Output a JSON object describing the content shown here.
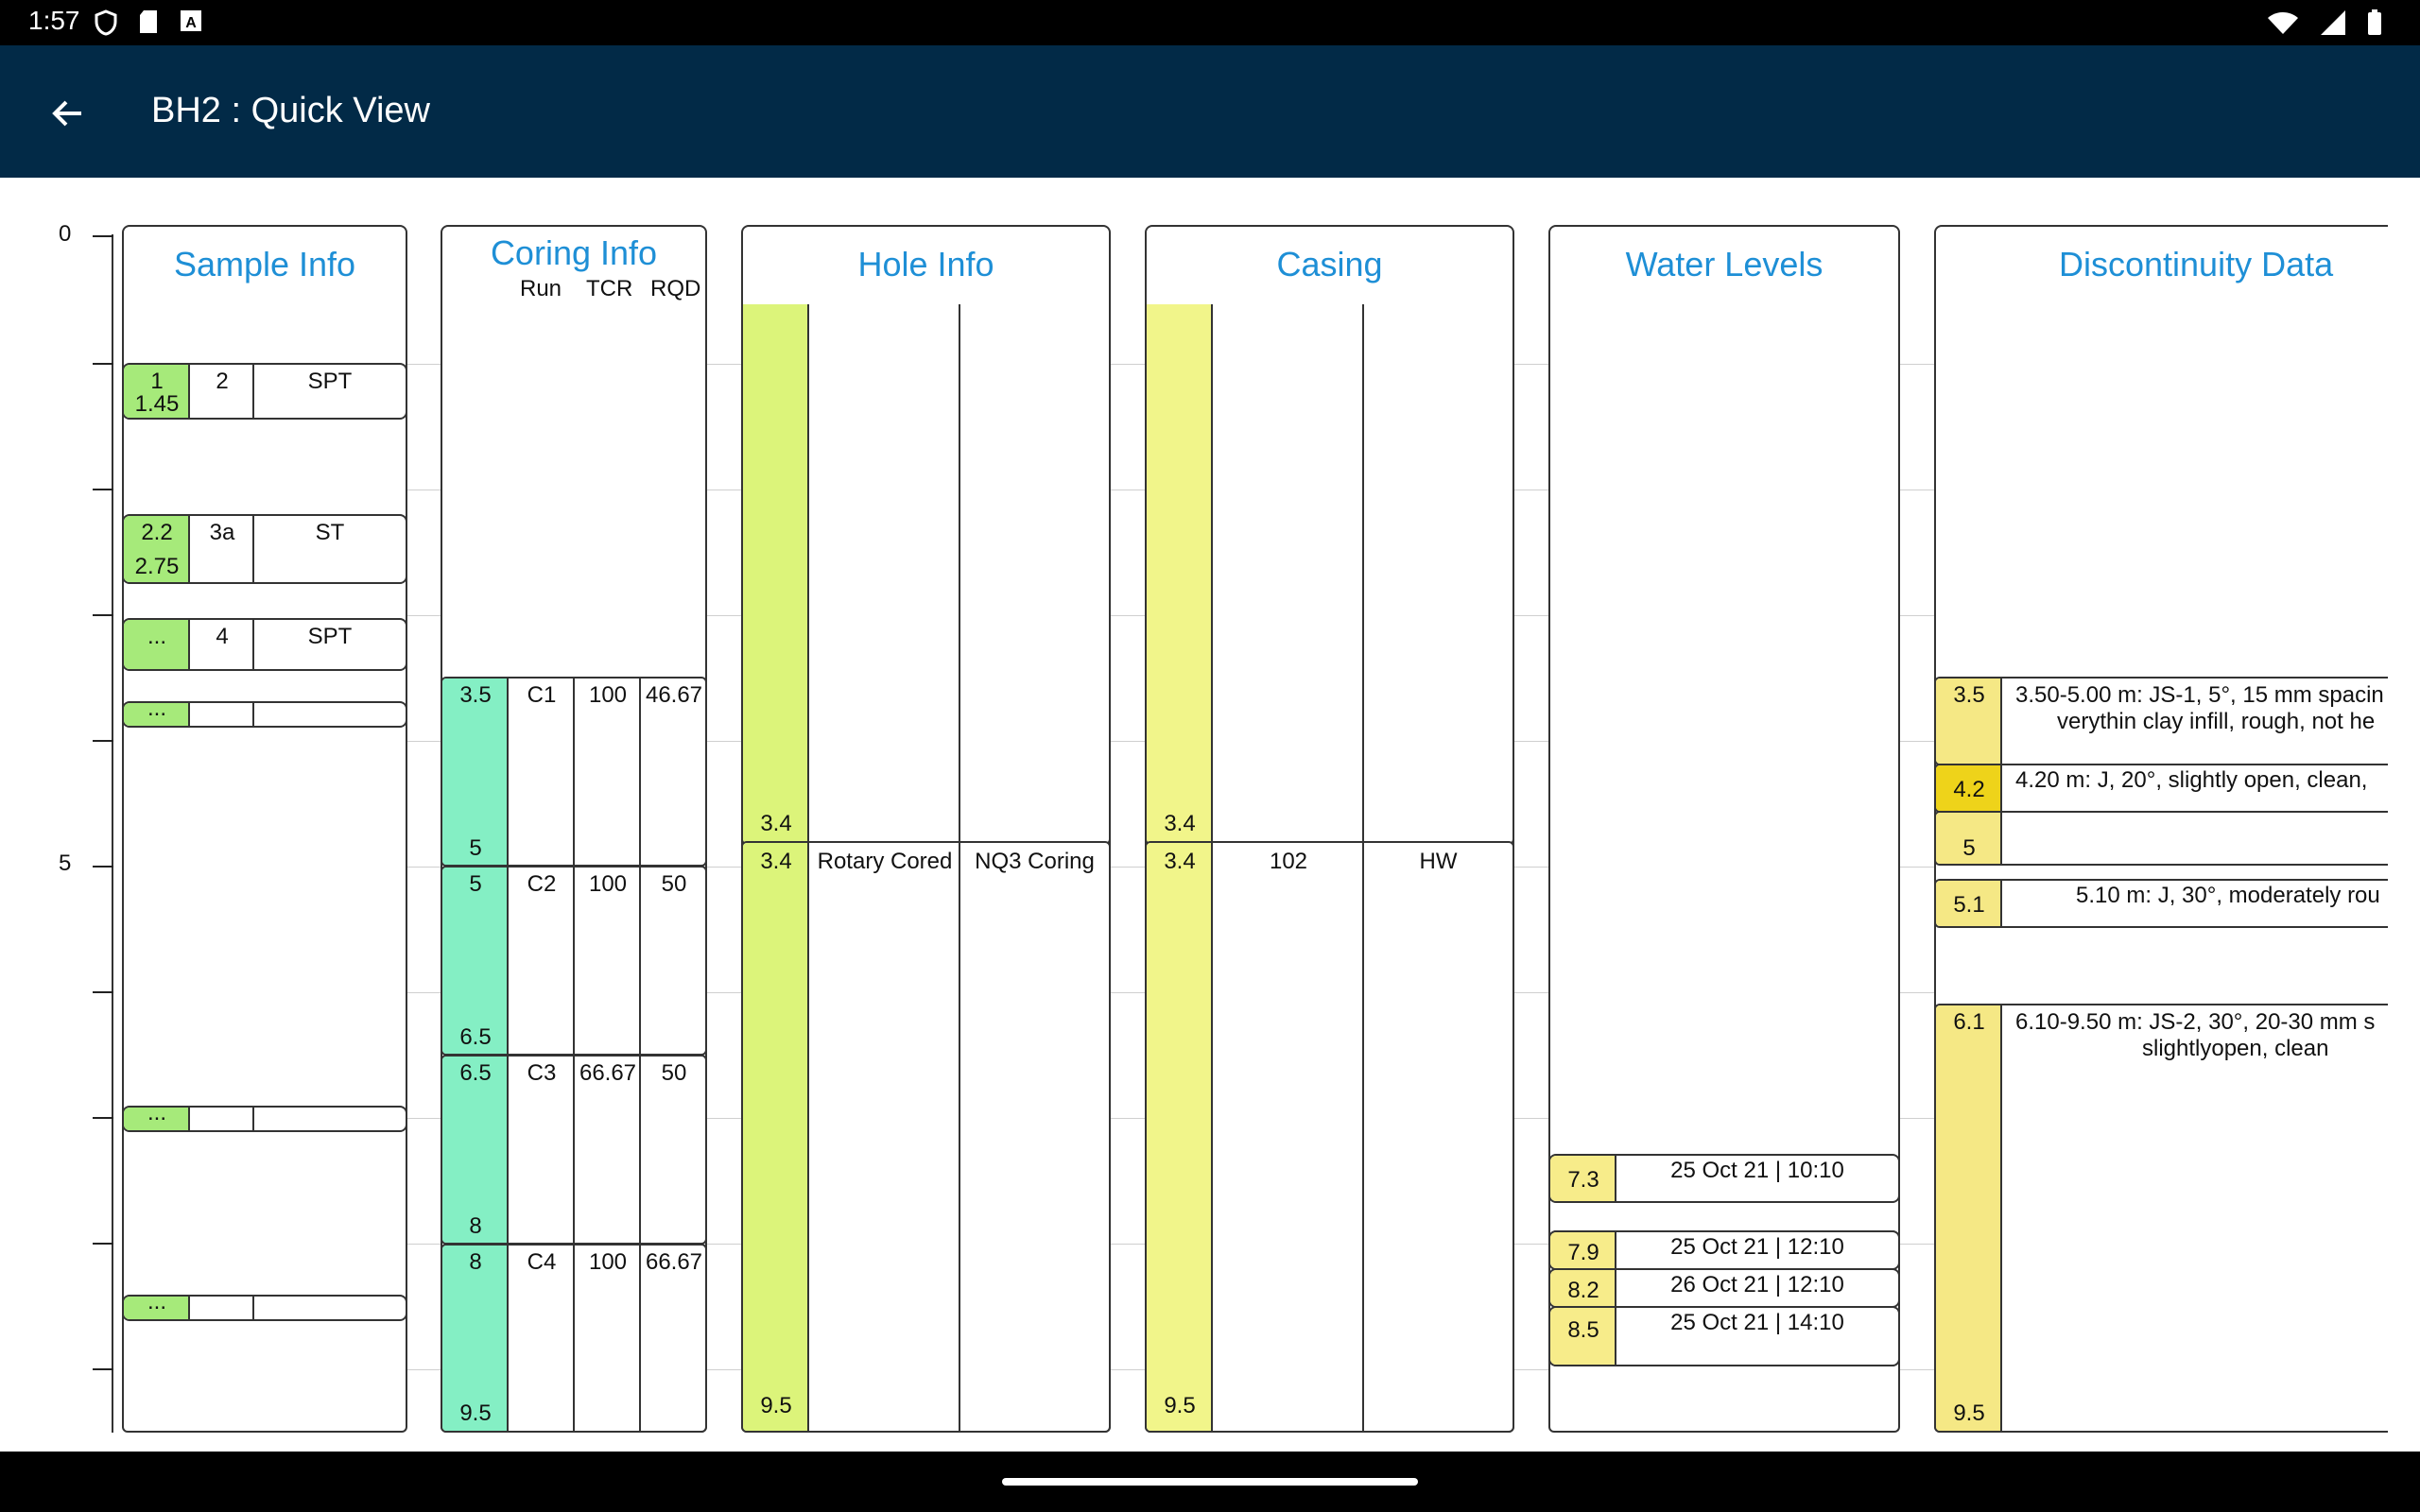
{
  "status_bar": {
    "time": "1:57",
    "left_icons": [
      "shield-icon",
      "sd-card-icon",
      "font-icon"
    ],
    "right_icons": [
      "wifi-icon",
      "signal-icon",
      "battery-icon"
    ]
  },
  "app_bar": {
    "title": "BH2 : Quick View",
    "background": "#022a47"
  },
  "depth_axis": {
    "labels": [
      "0",
      "5"
    ]
  },
  "columns": {
    "sample_info": {
      "title": "Sample Info",
      "samples": [
        {
          "top": "1",
          "bottom": "1.45",
          "number": "2",
          "type": "SPT"
        },
        {
          "top": "2.2",
          "bottom": "2.75",
          "number": "3a",
          "type": "ST"
        },
        {
          "top": "...",
          "bottom": "",
          "number": "4",
          "type": "SPT"
        },
        {
          "top": "...",
          "bottom": "",
          "number": "",
          "type": ""
        },
        {
          "top": "...",
          "bottom": "",
          "number": "",
          "type": ""
        },
        {
          "top": "...",
          "bottom": "",
          "number": "",
          "type": ""
        },
        {
          "top": "...",
          "bottom": "",
          "number": "",
          "type": ""
        }
      ]
    },
    "coring_info": {
      "title": "Coring Info",
      "sub_headers": [
        "Run",
        "TCR",
        "RQD"
      ],
      "runs": [
        {
          "from": "3.5",
          "to": "5",
          "run": "C1",
          "tcr": "100",
          "rqd": "46.67"
        },
        {
          "from": "5",
          "to": "6.5",
          "run": "C2",
          "tcr": "100",
          "rqd": "50"
        },
        {
          "from": "6.5",
          "to": "8",
          "run": "C3",
          "tcr": "66.67",
          "rqd": "50"
        },
        {
          "from": "8",
          "to": "9.5",
          "run": "C4",
          "tcr": "100",
          "rqd": "66.67"
        }
      ]
    },
    "hole_info": {
      "title": "Hole Info",
      "intervals": [
        {
          "from": "",
          "to": "3.4",
          "method": "",
          "core": ""
        },
        {
          "from": "3.4",
          "to": "9.5",
          "method": "Rotary Cored",
          "core": "NQ3 Coring"
        }
      ]
    },
    "casing": {
      "title": "Casing",
      "intervals": [
        {
          "from": "",
          "to": "3.4",
          "diameter": "",
          "type": ""
        },
        {
          "from": "3.4",
          "to": "9.5",
          "diameter": "102",
          "type": "HW"
        }
      ]
    },
    "water_levels": {
      "title": "Water Levels",
      "readings": [
        {
          "depth": "7.3",
          "datetime": "25 Oct 21 | 10:10"
        },
        {
          "depth": "7.9",
          "datetime": "25 Oct 21 | 12:10"
        },
        {
          "depth": "8.2",
          "datetime": "26 Oct 21 | 12:10"
        },
        {
          "depth": "8.5",
          "datetime": "25 Oct 21 | 14:10"
        }
      ]
    },
    "discontinuity_data": {
      "title": "Discontinuity Data",
      "entries": [
        {
          "depth": "3.5",
          "line1": "3.50-5.00 m: JS-1, 5°, 15 mm spacin",
          "line2": "verythin clay infill, rough, not he"
        },
        {
          "depth": "4.2",
          "line1": "4.20 m: J, 20°, slightly open, clean,",
          "line2": ""
        },
        {
          "depth": "5",
          "line1": "",
          "line2": ""
        },
        {
          "depth": "5.1",
          "line1": "5.10 m: J, 30°, moderately rou",
          "line2": ""
        },
        {
          "depth": "6.1",
          "line1": "6.10-9.50 m: JS-2, 30°, 20-30 mm s",
          "line2": "slightlyopen, clean"
        },
        {
          "depth": "9.5",
          "line1": "",
          "line2": ""
        }
      ]
    }
  },
  "colors": {
    "sample_green": "#a6ea7a",
    "coring_teal": "#84efc4",
    "hole_lime": "#dcf47a",
    "casing_yellow": "#f1f58a",
    "water_yellow": "#f7ec8a",
    "discontinuity_yellow": "#f5e885",
    "discontinuity_highlight": "#eed31a",
    "header_text": "#1e8fd6"
  }
}
